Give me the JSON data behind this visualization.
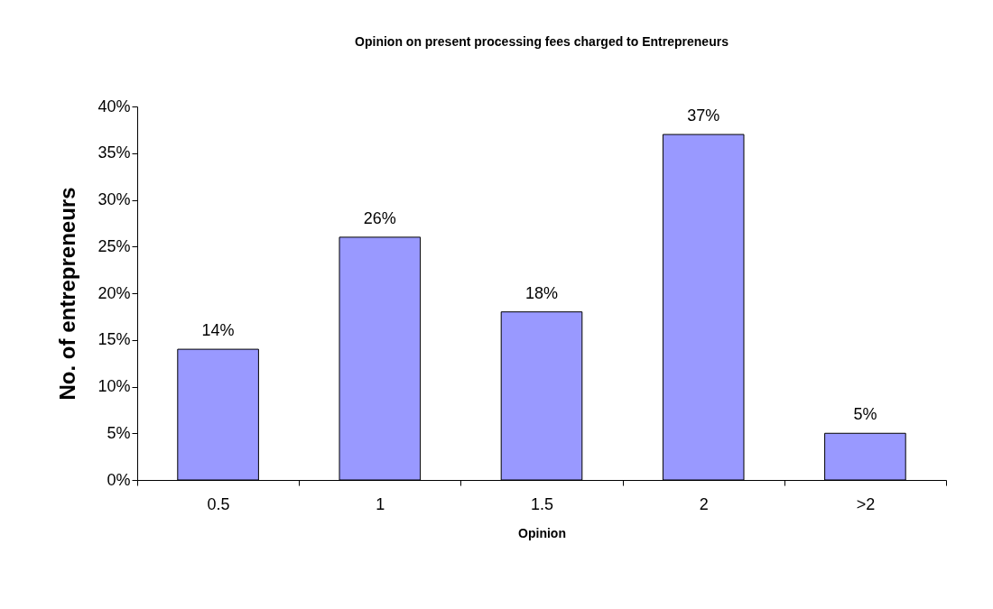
{
  "chart_data": {
    "type": "bar",
    "title": "Opinion on present processing fees charged to Entrepreneurs",
    "xlabel": "Opinion",
    "ylabel": "No. of entrepreneurs",
    "categories": [
      "0.5",
      "1",
      "1.5",
      "2",
      ">2"
    ],
    "values": [
      14,
      26,
      18,
      37,
      5
    ],
    "value_labels": [
      "14%",
      "26%",
      "18%",
      "37%",
      "5%"
    ],
    "color": "#9999ff",
    "ylim": [
      0,
      40
    ],
    "yticks": [
      {
        "value": 0,
        "label": "0%"
      },
      {
        "value": 5,
        "label": "5%"
      },
      {
        "value": 10,
        "label": "10%"
      },
      {
        "value": 15,
        "label": "15%"
      },
      {
        "value": 20,
        "label": "20%"
      },
      {
        "value": 25,
        "label": "25%"
      },
      {
        "value": 30,
        "label": "30%"
      },
      {
        "value": 35,
        "label": "35%"
      },
      {
        "value": 40,
        "label": "40%"
      }
    ],
    "grid": false
  }
}
